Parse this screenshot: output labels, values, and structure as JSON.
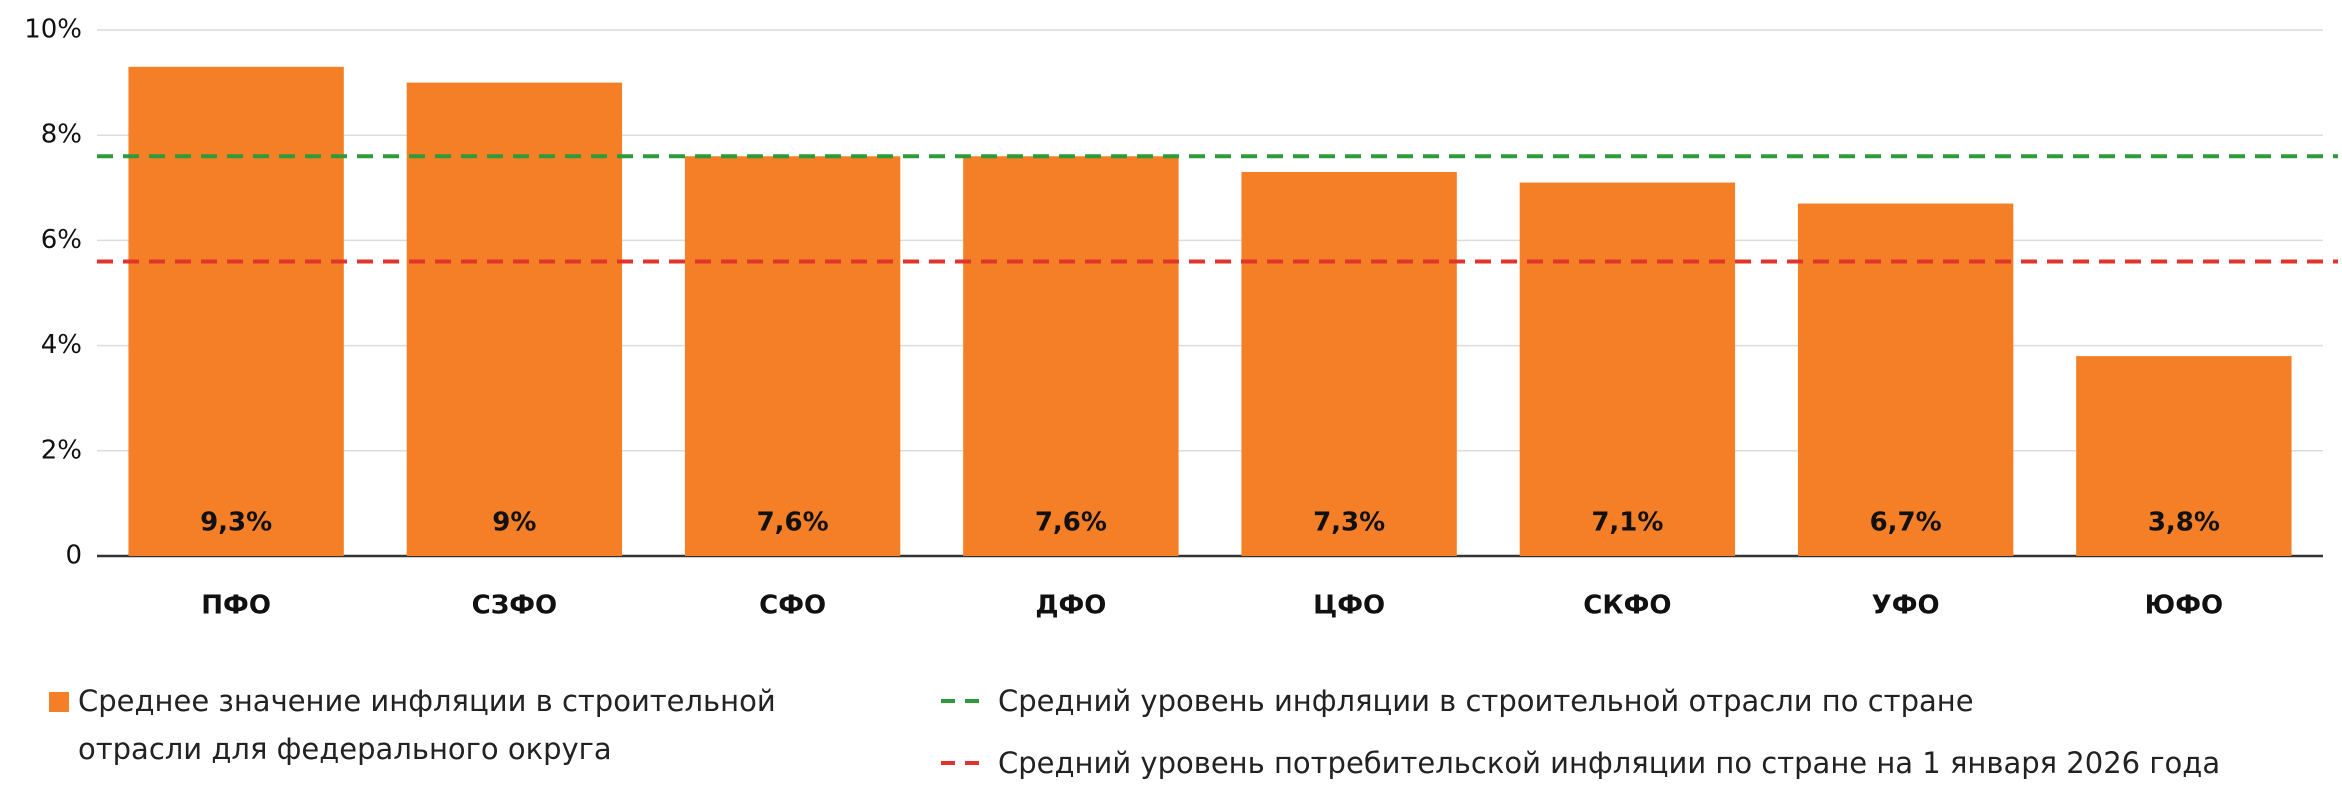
{
  "chart_data": {
    "type": "bar",
    "categories": [
      "ПФО",
      "СЗФО",
      "СФО",
      "ДФО",
      "ЦФО",
      "СКФО",
      "УФО",
      "ЮФО"
    ],
    "series": [
      {
        "name": "Среднее значение инфляции в строительной отрасли для федерального округа",
        "color": "#f47f27",
        "values": [
          9.3,
          9,
          7.6,
          7.6,
          7.3,
          7.1,
          6.7,
          3.8
        ],
        "value_labels": [
          "9,3%",
          "9%",
          "7,6%",
          "7,6%",
          "7,3%",
          "7,1%",
          "6,7%",
          "3,8%"
        ]
      }
    ],
    "reference_lines": [
      {
        "name": "Средний уровень инфляции в строительной отрасли по стране",
        "color": "#2e9a3c",
        "value": 7.6
      },
      {
        "name": "Средний уровень потребительской инфляции по стране на 1 января 2026 года",
        "color": "#e0352b",
        "value": 5.6
      }
    ],
    "ylim": [
      0,
      10
    ],
    "yticks": [
      0,
      {
        "value": 2,
        "label": "2%"
      },
      {
        "value": 4,
        "label": "4%"
      },
      {
        "value": 6,
        "label": "6%"
      },
      {
        "value": 8,
        "label": "8%"
      },
      {
        "value": 10,
        "label": "10%"
      }
    ],
    "grid": true
  }
}
